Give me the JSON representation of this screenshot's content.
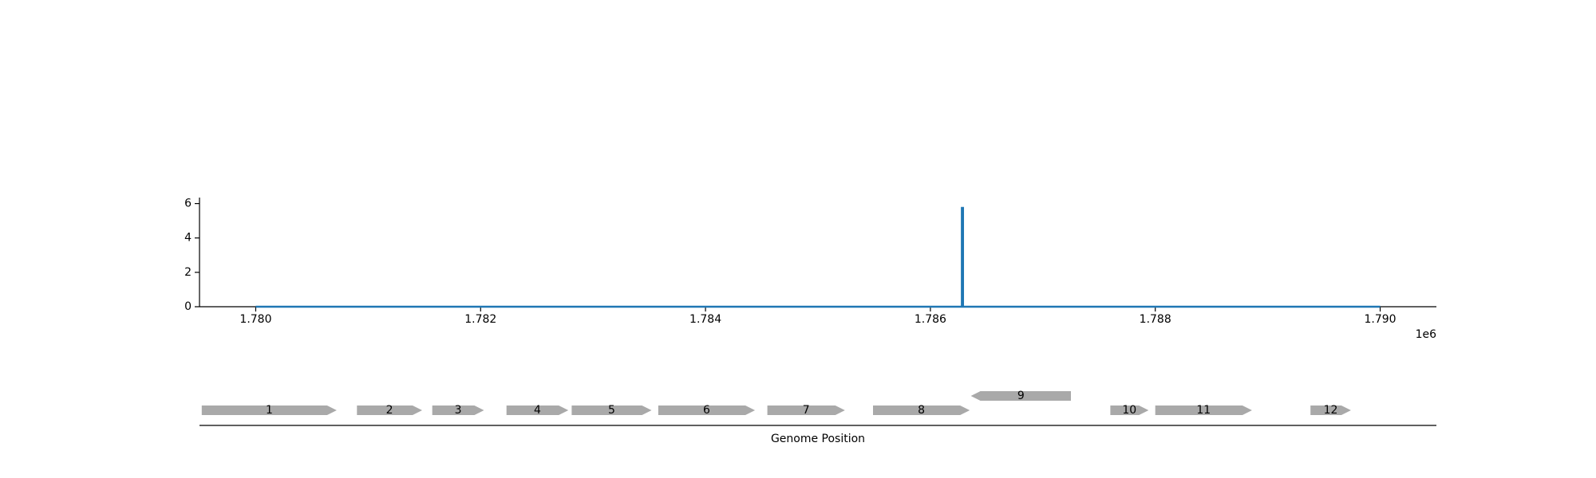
{
  "chart_data": [
    {
      "type": "line",
      "title": "",
      "xlabel": "",
      "ylabel": "",
      "x_offset_label": "1e6",
      "xlim": [
        1779500,
        1790500
      ],
      "ylim": [
        0,
        6.35
      ],
      "x_ticks": [
        1780000,
        1782000,
        1784000,
        1786000,
        1788000,
        1790000
      ],
      "x_tick_labels": [
        "1.780",
        "1.782",
        "1.784",
        "1.786",
        "1.788",
        "1.790"
      ],
      "y_ticks": [
        0,
        2,
        4,
        6
      ],
      "y_tick_labels": [
        "0",
        "2",
        "4",
        "6"
      ],
      "grid": false,
      "line_color": "#1f77b4",
      "series": [
        {
          "x": [
            1780000,
            1786280,
            1786280,
            1786290,
            1786290,
            1790000
          ],
          "y": [
            0,
            0,
            5.75,
            5.75,
            0,
            0
          ]
        }
      ]
    },
    {
      "type": "gene_map",
      "xlabel": "Genome Position",
      "xlim": [
        1779500,
        1790500
      ],
      "gene_color": "#a9a9a9",
      "genes": [
        {
          "label": "1",
          "start": 1779520,
          "end": 1780720,
          "strand": "+"
        },
        {
          "label": "2",
          "start": 1780900,
          "end": 1781480,
          "strand": "+"
        },
        {
          "label": "3",
          "start": 1781570,
          "end": 1782030,
          "strand": "+"
        },
        {
          "label": "4",
          "start": 1782230,
          "end": 1782780,
          "strand": "+"
        },
        {
          "label": "5",
          "start": 1782810,
          "end": 1783520,
          "strand": "+"
        },
        {
          "label": "6",
          "start": 1783580,
          "end": 1784440,
          "strand": "+"
        },
        {
          "label": "7",
          "start": 1784550,
          "end": 1785240,
          "strand": "+"
        },
        {
          "label": "8",
          "start": 1785490,
          "end": 1786350,
          "strand": "+"
        },
        {
          "label": "9",
          "start": 1786360,
          "end": 1787250,
          "strand": "-"
        },
        {
          "label": "10",
          "start": 1787600,
          "end": 1787940,
          "strand": "+"
        },
        {
          "label": "11",
          "start": 1788000,
          "end": 1788860,
          "strand": "+"
        },
        {
          "label": "12",
          "start": 1789380,
          "end": 1789740,
          "strand": "+"
        }
      ]
    }
  ]
}
